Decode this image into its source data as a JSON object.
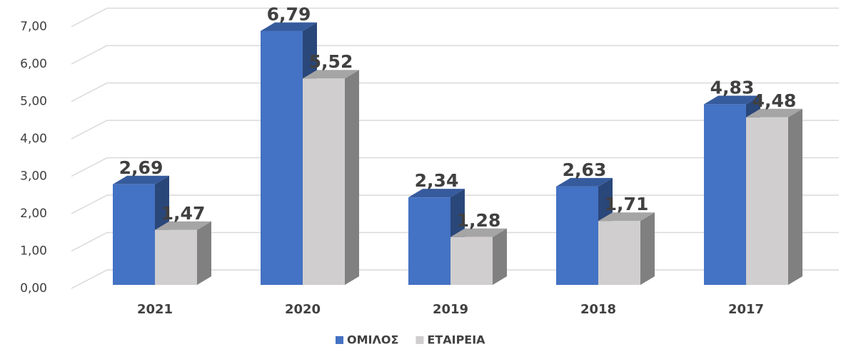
{
  "chart_data": {
    "type": "bar3d",
    "categories": [
      "2021",
      "2020",
      "2019",
      "2018",
      "2017"
    ],
    "series": [
      {
        "name": "ΟΜΙΛΟΣ",
        "color": "#4472c4",
        "values": [
          2.69,
          6.79,
          2.34,
          2.63,
          4.83
        ],
        "value_labels": [
          "2,69",
          "6,79",
          "2,34",
          "2,63",
          "4,83"
        ]
      },
      {
        "name": "ΕΤΑΙΡΕΙΑ",
        "color": "#d0cece",
        "values": [
          1.47,
          5.52,
          1.28,
          1.71,
          4.48
        ],
        "value_labels": [
          "1,47",
          "5,52",
          "1,28",
          "1,71",
          "4,48"
        ]
      }
    ],
    "ylim": [
      0,
      7
    ],
    "yticks": [
      {
        "value": 0,
        "label": "0,00"
      },
      {
        "value": 1,
        "label": "1,00"
      },
      {
        "value": 2,
        "label": "2,00"
      },
      {
        "value": 3,
        "label": "3,00"
      },
      {
        "value": 4,
        "label": "4,00"
      },
      {
        "value": 5,
        "label": "5,00"
      },
      {
        "value": 6,
        "label": "6,00"
      },
      {
        "value": 7,
        "label": "7,00"
      }
    ],
    "grid": true,
    "legend": "bottom"
  }
}
